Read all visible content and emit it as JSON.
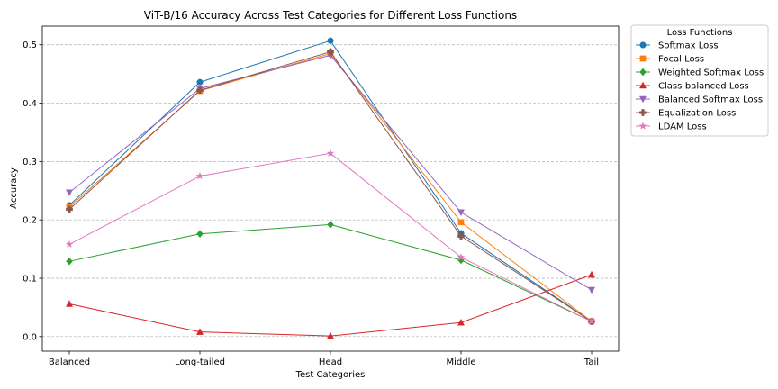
{
  "chart_data": {
    "type": "line",
    "title": "ViT-B/16 Accuracy Across Test Categories for Different Loss Functions",
    "xlabel": "Test Categories",
    "ylabel": "Accuracy",
    "categories": [
      "Balanced",
      "Long-tailed",
      "Head",
      "Middle",
      "Tail"
    ],
    "ylim": [
      -0.025,
      0.532
    ],
    "yticks": [
      "0.0",
      "0.1",
      "0.2",
      "0.3",
      "0.4",
      "0.5"
    ],
    "grid": "horizontal dashed",
    "legend": {
      "title": "Loss Functions",
      "placement": "outside right"
    },
    "series": [
      {
        "name": "Softmax Loss",
        "color": "#1f77b4",
        "marker": "circle",
        "values": [
          0.225,
          0.436,
          0.507,
          0.177,
          0.026
        ]
      },
      {
        "name": "Focal Loss",
        "color": "#ff7f0e",
        "marker": "square",
        "values": [
          0.222,
          0.421,
          0.485,
          0.196,
          0.026
        ]
      },
      {
        "name": "Weighted Softmax Loss",
        "color": "#2ca02c",
        "marker": "diamond",
        "values": [
          0.129,
          0.176,
          0.192,
          0.131,
          0.026
        ]
      },
      {
        "name": "Class-balanced Loss",
        "color": "#d62728",
        "marker": "triangle-up",
        "values": [
          0.056,
          0.008,
          0.001,
          0.024,
          0.106
        ]
      },
      {
        "name": "Balanced Softmax Loss",
        "color": "#9467bd",
        "marker": "triangle-down",
        "values": [
          0.247,
          0.425,
          0.482,
          0.213,
          0.08
        ]
      },
      {
        "name": "Equalization Loss",
        "color": "#8c564b",
        "marker": "plus-filled",
        "values": [
          0.218,
          0.422,
          0.488,
          0.172,
          0.026
        ]
      },
      {
        "name": "LDAM Loss",
        "color": "#e377c2",
        "marker": "star",
        "values": [
          0.158,
          0.275,
          0.314,
          0.136,
          0.026
        ]
      }
    ]
  }
}
